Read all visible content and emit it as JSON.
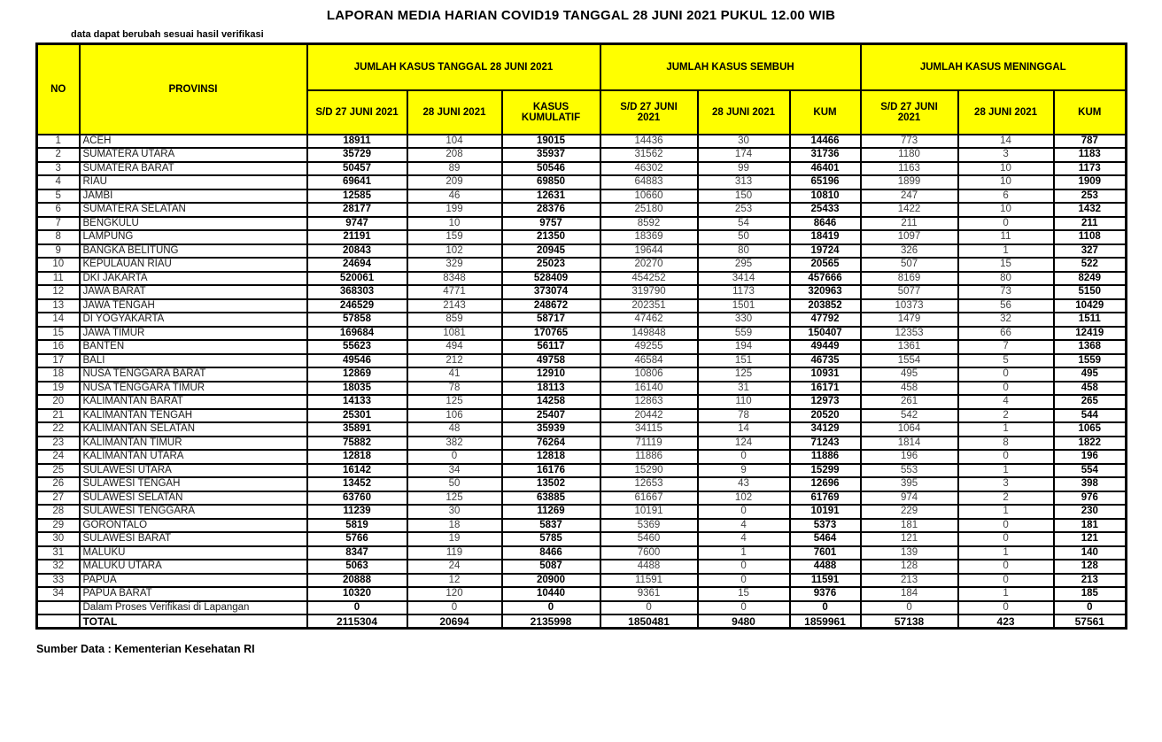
{
  "page": {
    "title": "LAPORAN MEDIA HARIAN COVID19 TANGGAL 28 JUNI 2021 PUKUL 12.00 WIB",
    "note": "data dapat berubah sesuai hasil verifikasi",
    "footer": "Sumber Data : Kementerian Kesehatan RI"
  },
  "colors": {
    "header_bg": "#FFFF00",
    "border": "#000000",
    "bold_text": "#000000",
    "regular_text": "#3f3f3f"
  },
  "table": {
    "columns": {
      "no": "NO",
      "provinsi": "PROVINSI",
      "groups": [
        {
          "label": "JUMLAH KASUS TANGGAL 28 JUNI 2021",
          "subs": [
            "S/D 27 JUNI 2021",
            "28 JUNI 2021",
            "KASUS KUMULATIF"
          ]
        },
        {
          "label": "JUMLAH KASUS SEMBUH",
          "subs": [
            "S/D 27 JUNI 2021",
            "28 JUNI 2021",
            "KUM"
          ]
        },
        {
          "label": "JUMLAH KASUS MENINGGAL",
          "subs": [
            "S/D 27 JUNI 2021",
            "28 JUNI 2021",
            "KUM"
          ]
        }
      ]
    },
    "rows": [
      {
        "no": "1",
        "provinsi": "ACEH",
        "values": [
          "18911",
          "104",
          "19015",
          "14436",
          "30",
          "14466",
          "773",
          "14",
          "787"
        ]
      },
      {
        "no": "2",
        "provinsi": "SUMATERA UTARA",
        "values": [
          "35729",
          "208",
          "35937",
          "31562",
          "174",
          "31736",
          "1180",
          "3",
          "1183"
        ]
      },
      {
        "no": "3",
        "provinsi": "SUMATERA BARAT",
        "values": [
          "50457",
          "89",
          "50546",
          "46302",
          "99",
          "46401",
          "1163",
          "10",
          "1173"
        ]
      },
      {
        "no": "4",
        "provinsi": "RIAU",
        "values": [
          "69641",
          "209",
          "69850",
          "64883",
          "313",
          "65196",
          "1899",
          "10",
          "1909"
        ]
      },
      {
        "no": "5",
        "provinsi": "JAMBI",
        "values": [
          "12585",
          "46",
          "12631",
          "10660",
          "150",
          "10810",
          "247",
          "6",
          "253"
        ]
      },
      {
        "no": "6",
        "provinsi": "SUMATERA SELATAN",
        "values": [
          "28177",
          "199",
          "28376",
          "25180",
          "253",
          "25433",
          "1422",
          "10",
          "1432"
        ]
      },
      {
        "no": "7",
        "provinsi": "BENGKULU",
        "values": [
          "9747",
          "10",
          "9757",
          "8592",
          "54",
          "8646",
          "211",
          "0",
          "211"
        ]
      },
      {
        "no": "8",
        "provinsi": "LAMPUNG",
        "values": [
          "21191",
          "159",
          "21350",
          "18369",
          "50",
          "18419",
          "1097",
          "11",
          "1108"
        ]
      },
      {
        "no": "9",
        "provinsi": "BANGKA BELITUNG",
        "values": [
          "20843",
          "102",
          "20945",
          "19644",
          "80",
          "19724",
          "326",
          "1",
          "327"
        ]
      },
      {
        "no": "10",
        "provinsi": "KEPULAUAN RIAU",
        "values": [
          "24694",
          "329",
          "25023",
          "20270",
          "295",
          "20565",
          "507",
          "15",
          "522"
        ]
      },
      {
        "no": "11",
        "provinsi": "DKI JAKARTA",
        "values": [
          "520061",
          "8348",
          "528409",
          "454252",
          "3414",
          "457666",
          "8169",
          "80",
          "8249"
        ]
      },
      {
        "no": "12",
        "provinsi": "JAWA BARAT",
        "values": [
          "368303",
          "4771",
          "373074",
          "319790",
          "1173",
          "320963",
          "5077",
          "73",
          "5150"
        ]
      },
      {
        "no": "13",
        "provinsi": "JAWA TENGAH",
        "values": [
          "246529",
          "2143",
          "248672",
          "202351",
          "1501",
          "203852",
          "10373",
          "56",
          "10429"
        ]
      },
      {
        "no": "14",
        "provinsi": "DI YOGYAKARTA",
        "values": [
          "57858",
          "859",
          "58717",
          "47462",
          "330",
          "47792",
          "1479",
          "32",
          "1511"
        ]
      },
      {
        "no": "15",
        "provinsi": "JAWA TIMUR",
        "values": [
          "169684",
          "1081",
          "170765",
          "149848",
          "559",
          "150407",
          "12353",
          "66",
          "12419"
        ]
      },
      {
        "no": "16",
        "provinsi": "BANTEN",
        "values": [
          "55623",
          "494",
          "56117",
          "49255",
          "194",
          "49449",
          "1361",
          "7",
          "1368"
        ]
      },
      {
        "no": "17",
        "provinsi": "BALI",
        "values": [
          "49546",
          "212",
          "49758",
          "46584",
          "151",
          "46735",
          "1554",
          "5",
          "1559"
        ]
      },
      {
        "no": "18",
        "provinsi": "NUSA TENGGARA BARAT",
        "values": [
          "12869",
          "41",
          "12910",
          "10806",
          "125",
          "10931",
          "495",
          "0",
          "495"
        ]
      },
      {
        "no": "19",
        "provinsi": "NUSA TENGGARA TIMUR",
        "values": [
          "18035",
          "78",
          "18113",
          "16140",
          "31",
          "16171",
          "458",
          "0",
          "458"
        ]
      },
      {
        "no": "20",
        "provinsi": "KALIMANTAN BARAT",
        "values": [
          "14133",
          "125",
          "14258",
          "12863",
          "110",
          "12973",
          "261",
          "4",
          "265"
        ]
      },
      {
        "no": "21",
        "provinsi": "KALIMANTAN TENGAH",
        "values": [
          "25301",
          "106",
          "25407",
          "20442",
          "78",
          "20520",
          "542",
          "2",
          "544"
        ]
      },
      {
        "no": "22",
        "provinsi": "KALIMANTAN SELATAN",
        "values": [
          "35891",
          "48",
          "35939",
          "34115",
          "14",
          "34129",
          "1064",
          "1",
          "1065"
        ]
      },
      {
        "no": "23",
        "provinsi": "KALIMANTAN TIMUR",
        "values": [
          "75882",
          "382",
          "76264",
          "71119",
          "124",
          "71243",
          "1814",
          "8",
          "1822"
        ]
      },
      {
        "no": "24",
        "provinsi": "KALIMANTAN UTARA",
        "values": [
          "12818",
          "0",
          "12818",
          "11886",
          "0",
          "11886",
          "196",
          "0",
          "196"
        ]
      },
      {
        "no": "25",
        "provinsi": "SULAWESI UTARA",
        "values": [
          "16142",
          "34",
          "16176",
          "15290",
          "9",
          "15299",
          "553",
          "1",
          "554"
        ]
      },
      {
        "no": "26",
        "provinsi": "SULAWESI TENGAH",
        "values": [
          "13452",
          "50",
          "13502",
          "12653",
          "43",
          "12696",
          "395",
          "3",
          "398"
        ]
      },
      {
        "no": "27",
        "provinsi": "SULAWESI SELATAN",
        "values": [
          "63760",
          "125",
          "63885",
          "61667",
          "102",
          "61769",
          "974",
          "2",
          "976"
        ]
      },
      {
        "no": "28",
        "provinsi": "SULAWESI TENGGARA",
        "values": [
          "11239",
          "30",
          "11269",
          "10191",
          "0",
          "10191",
          "229",
          "1",
          "230"
        ]
      },
      {
        "no": "29",
        "provinsi": "GORONTALO",
        "values": [
          "5819",
          "18",
          "5837",
          "5369",
          "4",
          "5373",
          "181",
          "0",
          "181"
        ]
      },
      {
        "no": "30",
        "provinsi": "SULAWESI BARAT",
        "values": [
          "5766",
          "19",
          "5785",
          "5460",
          "4",
          "5464",
          "121",
          "0",
          "121"
        ]
      },
      {
        "no": "31",
        "provinsi": "MALUKU",
        "values": [
          "8347",
          "119",
          "8466",
          "7600",
          "1",
          "7601",
          "139",
          "1",
          "140"
        ]
      },
      {
        "no": "32",
        "provinsi": "MALUKU UTARA",
        "values": [
          "5063",
          "24",
          "5087",
          "4488",
          "0",
          "4488",
          "128",
          "0",
          "128"
        ]
      },
      {
        "no": "33",
        "provinsi": "PAPUA",
        "values": [
          "20888",
          "12",
          "20900",
          "11591",
          "0",
          "11591",
          "213",
          "0",
          "213"
        ]
      },
      {
        "no": "34",
        "provinsi": "PAPUA BARAT",
        "values": [
          "10320",
          "120",
          "10440",
          "9361",
          "15",
          "9376",
          "184",
          "1",
          "185"
        ]
      },
      {
        "no": "",
        "provinsi": "Dalam Proses Verifikasi di Lapangan",
        "values": [
          "0",
          "0",
          "0",
          "0",
          "0",
          "0",
          "0",
          "0",
          "0"
        ]
      },
      {
        "no": "",
        "provinsi": "TOTAL",
        "values": [
          "2115304",
          "20694",
          "2135998",
          "1850481",
          "9480",
          "1859961",
          "57138",
          "423",
          "57561"
        ]
      }
    ]
  }
}
